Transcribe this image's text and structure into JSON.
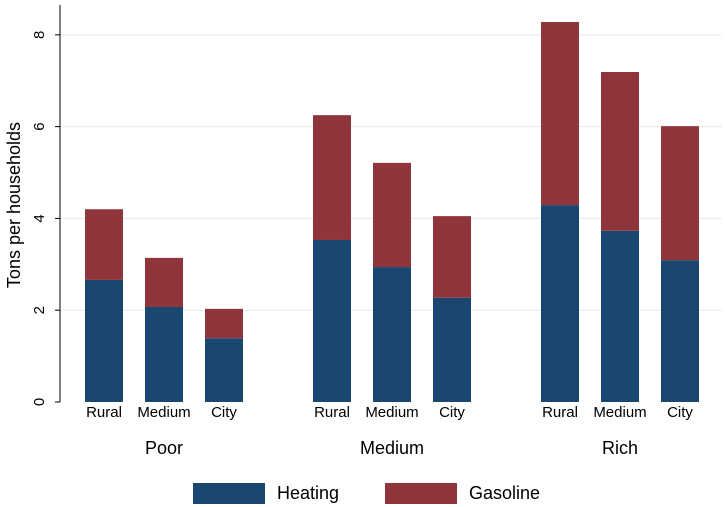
{
  "chart_data": {
    "type": "stacked_bar",
    "y_label": "Tons per households",
    "groups": [
      "Poor",
      "Medium",
      "Rich"
    ],
    "categories": [
      "Rural",
      "Medium",
      "City",
      "Rural",
      "Medium",
      "City",
      "Rural",
      "Medium",
      "City"
    ],
    "series": [
      {
        "name": "Heating",
        "color": "#1a476f",
        "values": [
          2.66,
          2.07,
          1.39,
          3.53,
          2.94,
          2.27,
          4.29,
          3.73,
          3.09
        ]
      },
      {
        "name": "Gasoline",
        "color": "#90353b",
        "values": [
          1.54,
          1.07,
          0.64,
          2.72,
          2.27,
          1.78,
          3.99,
          3.46,
          2.92
        ]
      }
    ],
    "ylim": [
      0,
      8.65
    ],
    "yticks": [
      0,
      2,
      4,
      6,
      8
    ],
    "grid": true,
    "legend": "bottom"
  }
}
